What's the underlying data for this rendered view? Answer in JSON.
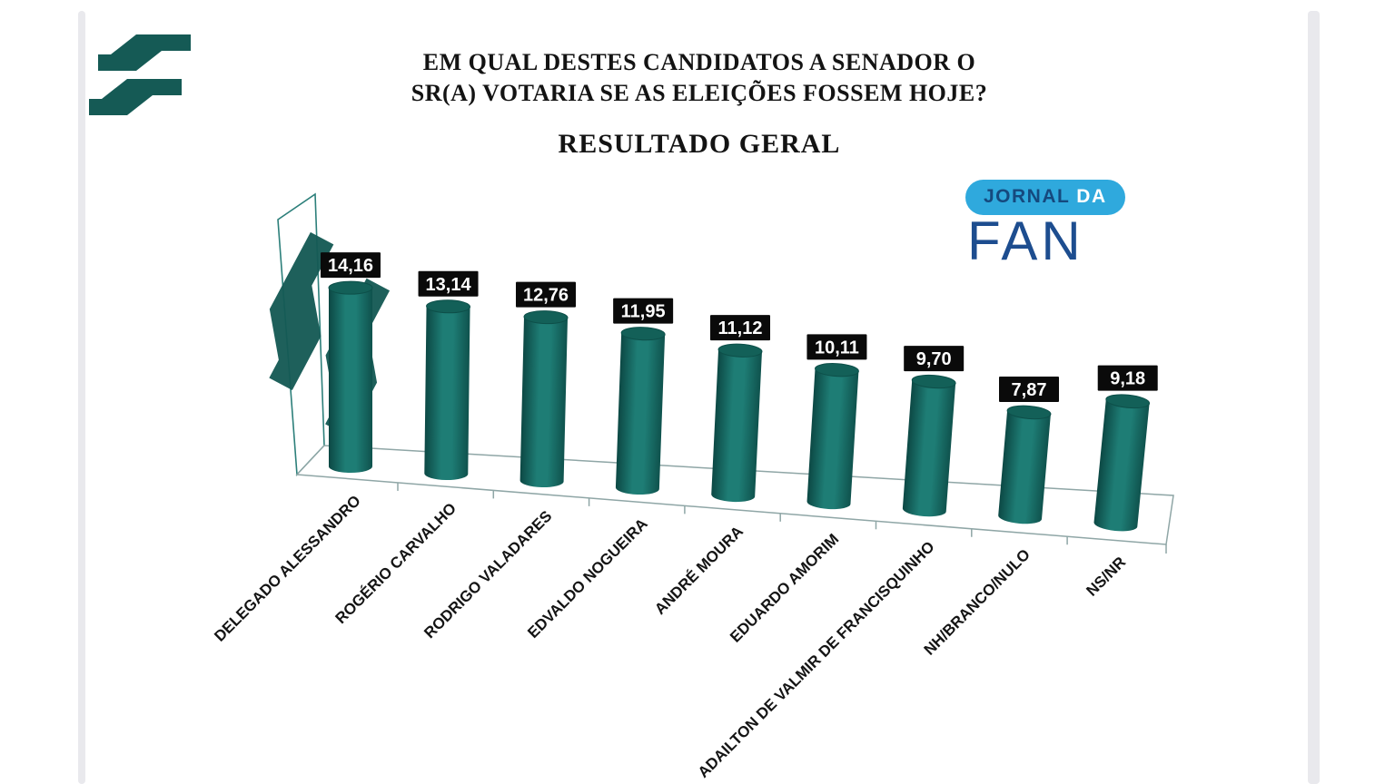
{
  "page": {
    "background": "#ffffff",
    "edge_strip_color": "#e9e9ed"
  },
  "header": {
    "title_line1": "EM QUAL DESTES CANDIDATOS A SENADOR O",
    "title_line2": "SR(A) VOTARIA SE AS ELEIÇÕES FOSSEM HOJE?",
    "subtitle": "RESULTADO GERAL"
  },
  "branding": {
    "jornal_word": "JORNAL ",
    "da_word": "DA",
    "fan_word": "FAN",
    "pill_color": "#2fa9dd",
    "jornal_color": "#15497e",
    "da_color": "#ffffff",
    "fan_color": "#1d4d8f",
    "station_logo_color": "#155a55"
  },
  "icons": {
    "station_logo": "two-teal-step-bands",
    "watermark_logo": "two-teal-step-bands-rotated"
  },
  "chart_data": {
    "type": "bar",
    "style": "3d-cylinder",
    "title": "EM QUAL DESTES CANDIDATOS A SENADOR O SR(A) VOTARIA SE AS ELEIÇÕES FOSSEM HOJE? — RESULTADO GERAL",
    "categories": [
      "DELEGADO ALESSANDRO",
      "ROGÉRIO CARVALHO",
      "RODRIGO VALADARES",
      "EDVALDO NOGUEIRA",
      "ANDRÉ MOURA",
      "EDUARDO AMORIM",
      "ADAILTON DE VALMIR DE FRANCISQUINHO",
      "NH/BRANCO/NULO",
      "NS/NR"
    ],
    "values": [
      14.16,
      13.14,
      12.76,
      11.95,
      11.12,
      10.11,
      9.7,
      7.87,
      9.18
    ],
    "value_labels": [
      "14,16",
      "13,14",
      "12,76",
      "11,95",
      "11,12",
      "10,11",
      "9,70",
      "7,87",
      "9,18"
    ],
    "xlabel": "",
    "ylabel": "",
    "grid": false,
    "legend": false,
    "colors": {
      "bar_edge": "#0c4844",
      "bar_mid": "#1e7d75",
      "bar_shade": "#0f524d",
      "bar_top": "#136058",
      "bar_top_stroke": "#0d4f49",
      "value_label_bg": "#0a0a0a",
      "value_label_text": "#ffffff",
      "category_text": "#141414",
      "axis_frame": "#8fa6a6",
      "wall_frame": "#2c7f7a"
    }
  }
}
